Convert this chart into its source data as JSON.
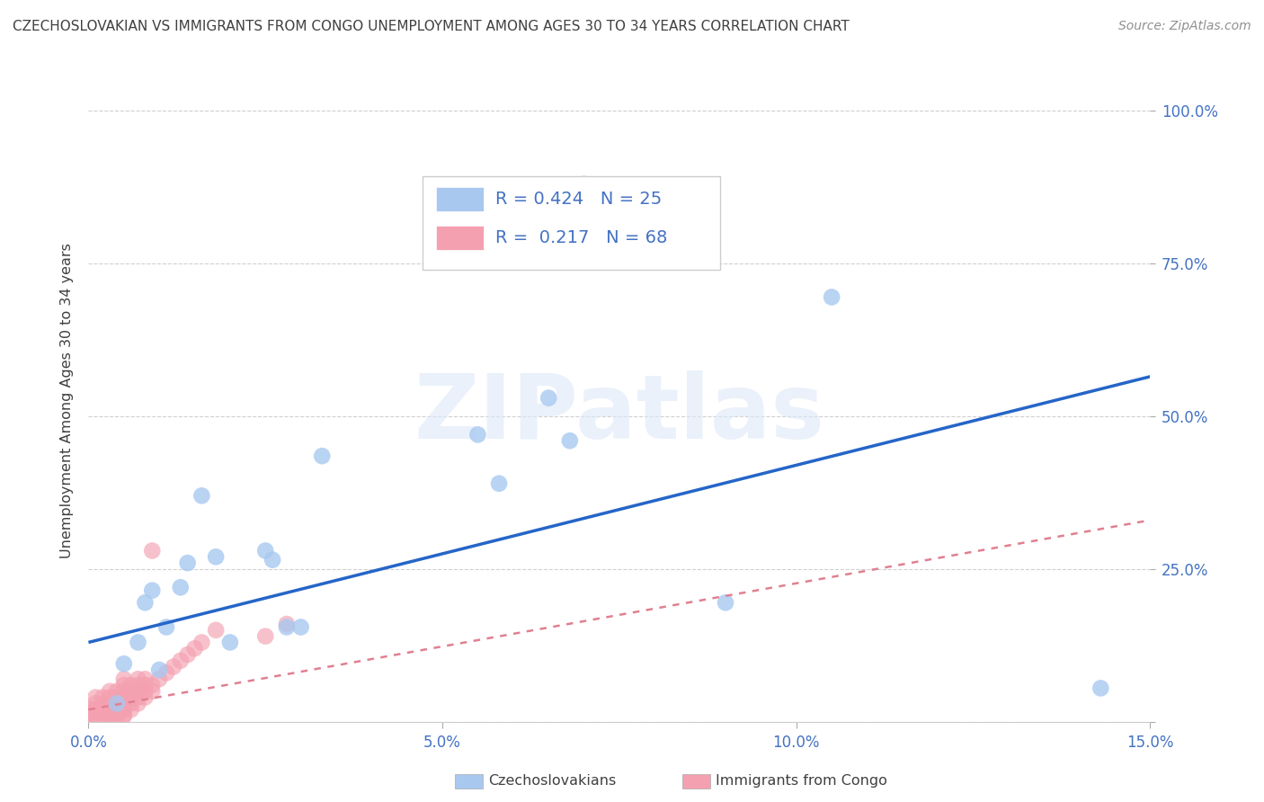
{
  "title": "CZECHOSLOVAKIAN VS IMMIGRANTS FROM CONGO UNEMPLOYMENT AMONG AGES 30 TO 34 YEARS CORRELATION CHART",
  "source": "Source: ZipAtlas.com",
  "ylabel": "Unemployment Among Ages 30 to 34 years",
  "watermark": "ZIPatlas",
  "xlim": [
    0.0,
    0.15
  ],
  "ylim": [
    0.0,
    1.05
  ],
  "xticks": [
    0.0,
    0.05,
    0.1,
    0.15
  ],
  "xticklabels": [
    "0.0%",
    "5.0%",
    "10.0%",
    "15.0%"
  ],
  "yticks": [
    0.0,
    0.25,
    0.5,
    0.75,
    1.0
  ],
  "yticklabels": [
    "",
    "25.0%",
    "50.0%",
    "75.0%",
    "100.0%"
  ],
  "group1_label": "Czechoslovakians",
  "group1_color": "#a8c8f0",
  "group1_R": "0.424",
  "group1_N": "25",
  "group2_label": "Immigrants from Congo",
  "group2_color": "#f4a0b0",
  "group2_R": "0.217",
  "group2_N": "68",
  "group1_x": [
    0.004,
    0.005,
    0.007,
    0.008,
    0.009,
    0.01,
    0.011,
    0.013,
    0.014,
    0.016,
    0.018,
    0.02,
    0.025,
    0.026,
    0.028,
    0.03,
    0.033,
    0.055,
    0.058,
    0.065,
    0.068,
    0.07,
    0.09,
    0.105,
    0.143
  ],
  "group1_y": [
    0.03,
    0.095,
    0.13,
    0.195,
    0.215,
    0.085,
    0.155,
    0.22,
    0.26,
    0.37,
    0.27,
    0.13,
    0.28,
    0.265,
    0.155,
    0.155,
    0.435,
    0.47,
    0.39,
    0.53,
    0.46,
    0.88,
    0.195,
    0.695,
    0.055
  ],
  "group2_x": [
    0.0,
    0.0,
    0.0,
    0.001,
    0.001,
    0.001,
    0.001,
    0.001,
    0.001,
    0.002,
    0.002,
    0.002,
    0.002,
    0.002,
    0.002,
    0.003,
    0.003,
    0.003,
    0.003,
    0.003,
    0.003,
    0.003,
    0.003,
    0.003,
    0.004,
    0.004,
    0.004,
    0.004,
    0.004,
    0.004,
    0.004,
    0.005,
    0.005,
    0.005,
    0.005,
    0.005,
    0.005,
    0.005,
    0.005,
    0.005,
    0.005,
    0.006,
    0.006,
    0.006,
    0.006,
    0.006,
    0.007,
    0.007,
    0.007,
    0.007,
    0.007,
    0.008,
    0.008,
    0.008,
    0.008,
    0.009,
    0.009,
    0.009,
    0.01,
    0.011,
    0.012,
    0.013,
    0.014,
    0.015,
    0.016,
    0.018,
    0.025,
    0.028
  ],
  "group2_y": [
    0.01,
    0.01,
    0.02,
    0.01,
    0.01,
    0.02,
    0.02,
    0.03,
    0.04,
    0.01,
    0.01,
    0.02,
    0.02,
    0.03,
    0.04,
    0.01,
    0.01,
    0.01,
    0.02,
    0.02,
    0.03,
    0.03,
    0.04,
    0.05,
    0.01,
    0.01,
    0.02,
    0.02,
    0.03,
    0.04,
    0.05,
    0.01,
    0.01,
    0.02,
    0.02,
    0.03,
    0.04,
    0.04,
    0.05,
    0.06,
    0.07,
    0.02,
    0.03,
    0.04,
    0.05,
    0.06,
    0.03,
    0.04,
    0.05,
    0.06,
    0.07,
    0.04,
    0.05,
    0.06,
    0.07,
    0.05,
    0.06,
    0.28,
    0.07,
    0.08,
    0.09,
    0.1,
    0.11,
    0.12,
    0.13,
    0.15,
    0.14,
    0.16
  ],
  "trend1_x": [
    0.0,
    0.15
  ],
  "trend1_y": [
    0.13,
    0.565
  ],
  "trend2_x": [
    0.0,
    0.15
  ],
  "trend2_y": [
    0.02,
    0.33
  ],
  "background_color": "#ffffff",
  "grid_color": "#d0d0d0",
  "axis_color": "#4472c4",
  "title_color": "#404040",
  "source_color": "#909090"
}
